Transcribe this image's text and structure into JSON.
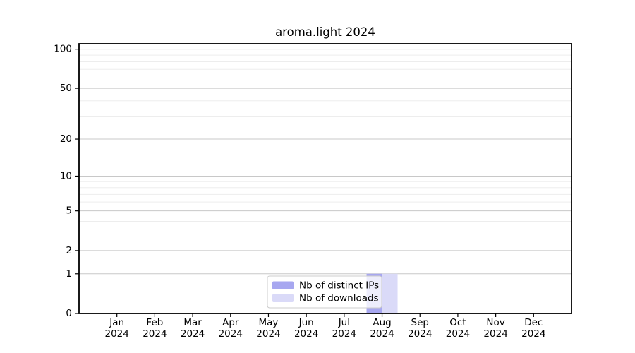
{
  "chart_data": {
    "type": "bar",
    "title": "aroma.light 2024",
    "categories": [
      "Jan",
      "Feb",
      "Mar",
      "Apr",
      "May",
      "Jun",
      "Jul",
      "Aug",
      "Sep",
      "Oct",
      "Nov",
      "Dec"
    ],
    "year": "2024",
    "series": [
      {
        "name": "Nb of distinct IPs",
        "color": "#a7a7f0",
        "values": [
          0,
          0,
          0,
          0,
          0,
          0,
          0,
          1,
          0,
          0,
          0,
          0
        ]
      },
      {
        "name": "Nb of downloads",
        "color": "#dadaf8",
        "values": [
          0,
          0,
          0,
          0,
          0,
          0,
          0,
          1,
          0,
          0,
          0,
          0
        ]
      }
    ],
    "xlabel": "",
    "ylabel": "",
    "yscale": "log1p",
    "ylim": [
      0,
      110
    ],
    "yticks": [
      0,
      1,
      2,
      5,
      10,
      20,
      50,
      100
    ],
    "yticks_minor": [
      3,
      4,
      6,
      7,
      8,
      9,
      30,
      40,
      60,
      70,
      80,
      90
    ],
    "grid": "horizontal",
    "legend_position": "lower center"
  },
  "colors": {
    "background": "#ffffff",
    "spine": "#000000",
    "grid_major": "#c8c8c8",
    "grid_minor": "#ededed",
    "tick": "#000000",
    "text": "#000000",
    "legend_border": "#cccccc",
    "legend_bg_alpha": "0.8"
  }
}
